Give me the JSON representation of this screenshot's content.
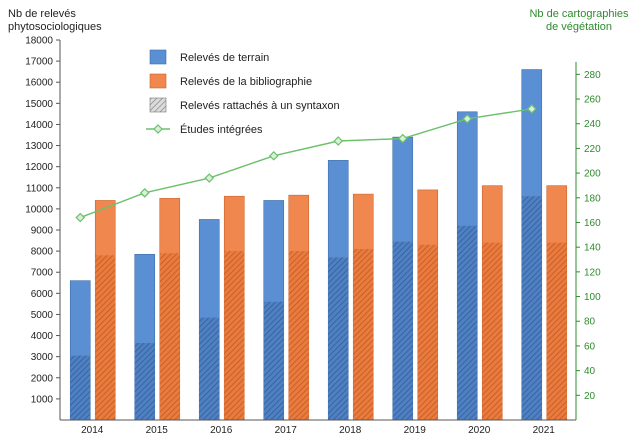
{
  "chart_data": {
    "type": "bar",
    "categories": [
      "2014",
      "2015",
      "2016",
      "2017",
      "2018",
      "2019",
      "2020",
      "2021"
    ],
    "ylabel": "Nb de relevés phytosociologiques",
    "y2label": "Nb de cartographies de végétation",
    "ylim": [
      0,
      18000
    ],
    "y2lim": [
      0,
      290
    ],
    "yticks": [
      1000,
      2000,
      3000,
      4000,
      5000,
      6000,
      7000,
      8000,
      9000,
      10000,
      11000,
      12000,
      13000,
      14000,
      15000,
      16000,
      17000,
      18000
    ],
    "y2ticks": [
      20,
      40,
      60,
      80,
      100,
      120,
      140,
      160,
      180,
      200,
      220,
      240,
      260,
      280
    ],
    "series": [
      {
        "name": "Relevés de terrain",
        "type": "bar",
        "axis": "left",
        "color": "#5b8fd4",
        "values": [
          6600,
          7850,
          9500,
          10400,
          12300,
          13400,
          14600,
          16600
        ]
      },
      {
        "name": "Relevés de la bibliographie",
        "type": "bar",
        "axis": "left",
        "color": "#f0874f",
        "values": [
          10400,
          10500,
          10600,
          10650,
          10700,
          10900,
          11100,
          11100
        ]
      },
      {
        "name": "Relevés rattachés à un syntaxon",
        "type": "hatch",
        "axis": "left",
        "values_terrain": [
          3050,
          3650,
          4850,
          5600,
          7700,
          8450,
          9200,
          10600
        ],
        "values_biblio": [
          7800,
          7900,
          8000,
          8000,
          8100,
          8300,
          8400,
          8400
        ]
      },
      {
        "name": "Études intégrées",
        "type": "line",
        "axis": "right",
        "color": "#6cc06c",
        "values": [
          164,
          184,
          196,
          214,
          226,
          228,
          244,
          252
        ]
      }
    ],
    "legend_position": "top-left",
    "grid": false
  }
}
